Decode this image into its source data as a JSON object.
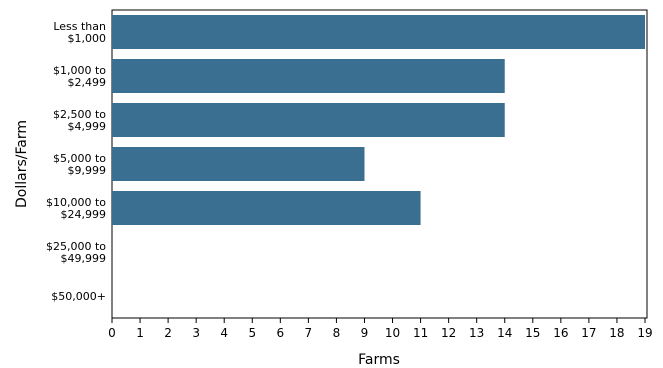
{
  "chart_data": {
    "type": "bar",
    "orientation": "horizontal",
    "categories": [
      [
        "Less than",
        "$1,000"
      ],
      [
        "$1,000 to",
        "$2,499"
      ],
      [
        "$2,500 to",
        "$4,999"
      ],
      [
        "$5,000 to",
        "$9,999"
      ],
      [
        "$10,000 to",
        "$24,999"
      ],
      [
        "$25,000 to",
        "$49,999"
      ],
      [
        "$50,000+"
      ]
    ],
    "values": [
      19,
      14,
      14,
      9,
      11,
      0,
      0
    ],
    "xlabel": "Farms",
    "ylabel": "Dollars/Farm",
    "xlim": [
      0,
      19
    ],
    "xticks": [
      "0",
      "1",
      "2",
      "3",
      "4",
      "5",
      "6",
      "7",
      "8",
      "9",
      "10",
      "11",
      "12",
      "13",
      "14",
      "15",
      "16",
      "17",
      "18",
      "19"
    ],
    "grid": false,
    "bar_color": "#3a6f91"
  }
}
